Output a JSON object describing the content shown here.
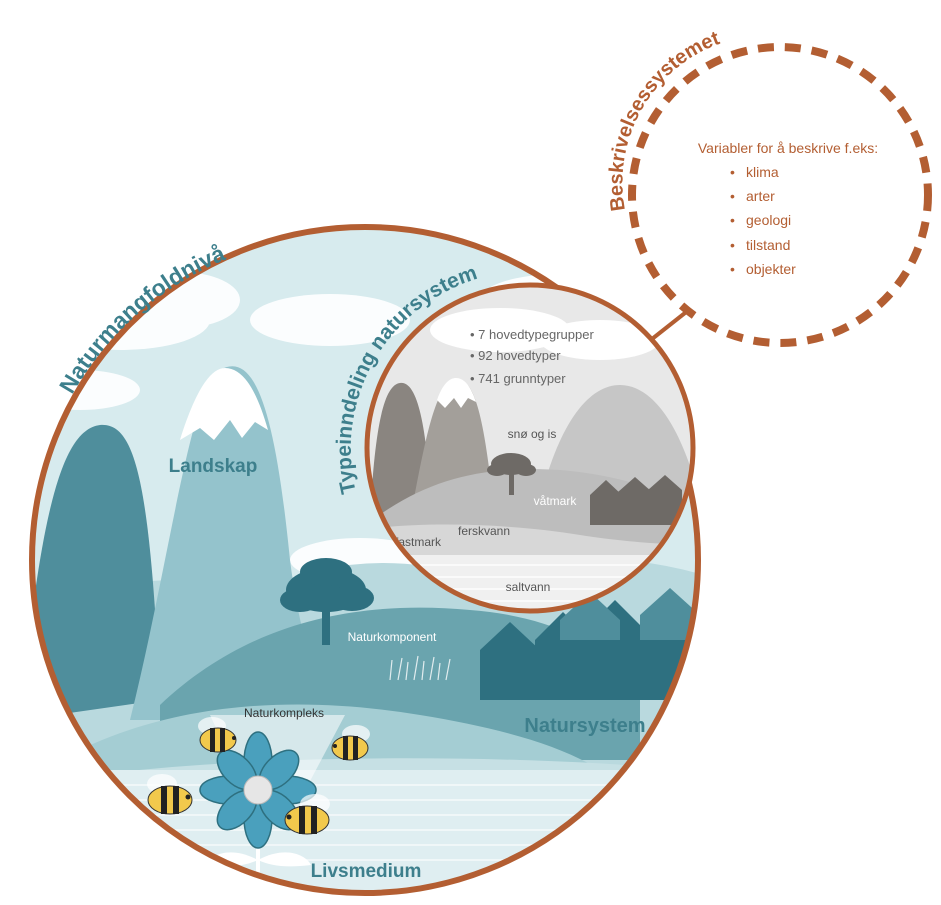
{
  "colors": {
    "ring": "#b35e32",
    "teal_dark": "#2e7080",
    "teal_mid": "#4f8e9c",
    "teal_light": "#94c3cc",
    "teal_pale": "#c6e0e4",
    "sky": "#d7ebee",
    "water": "#dfeef1",
    "grey_text": "#666666"
  },
  "outer_circle": {
    "title": "Naturmangfoldnivå",
    "labels": {
      "landskap": "Landskap",
      "naturkomponent": "Naturkomponent",
      "naturkompleks": "Naturkompleks",
      "natursystem": "Natursystem",
      "livsmedium": "Livsmedium"
    }
  },
  "inner_circle": {
    "title": "Typeinndeling natursystem",
    "bullets": [
      "• 7 hovedtypegrupper",
      "• 92 hovedtyper",
      "• 741 grunntyper"
    ],
    "labels": {
      "sno_og_is": "snø og is",
      "vatmark": "våtmark",
      "ferskvann": "ferskvann",
      "fastmark": "fastmark",
      "saltvann": "saltvann"
    }
  },
  "description_circle": {
    "title": "Beskrivelsessystemet",
    "intro": "Variabler for å beskrive f.eks:",
    "items": [
      "klima",
      "arter",
      "geologi",
      "tilstand",
      "objekter"
    ]
  },
  "icons": [
    "bee-icon",
    "flower-icon",
    "tree-icon",
    "house-icon",
    "mountain-icon",
    "cloud-icon"
  ]
}
